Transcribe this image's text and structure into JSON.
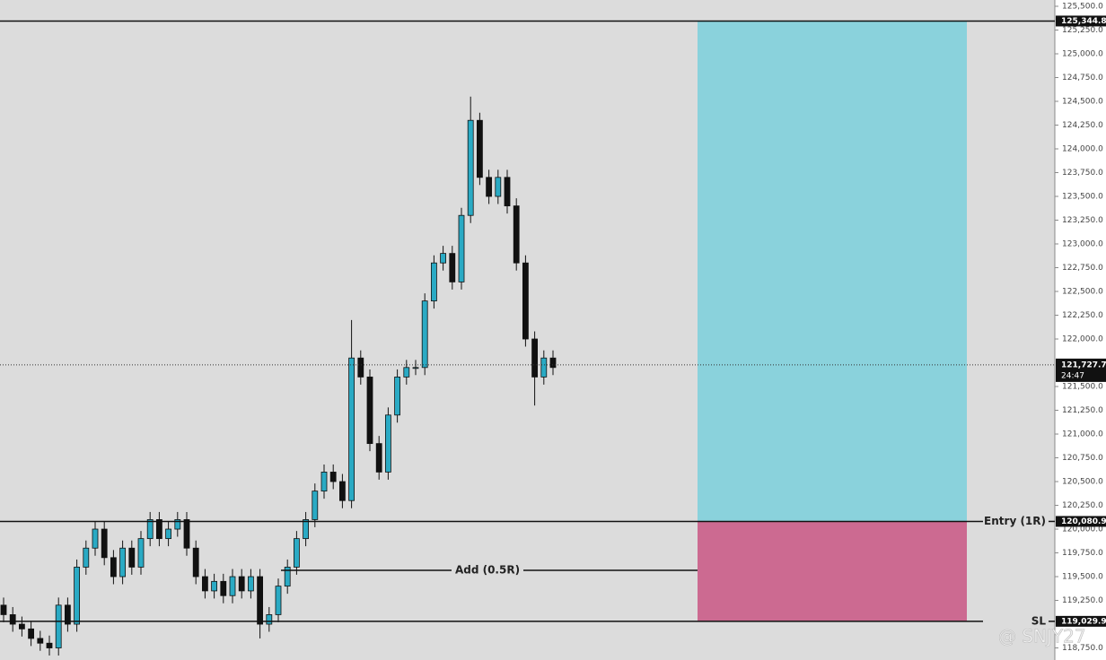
{
  "chart_data": {
    "type": "candlestick",
    "open": [
      119200,
      119100,
      119000,
      118950,
      118850,
      118800,
      118750,
      119200,
      119000,
      119600,
      119800,
      120000,
      119700,
      119500,
      119800,
      119600,
      119900,
      120100,
      119900,
      120000,
      120100,
      119800,
      119500,
      119350,
      119450,
      119300,
      119500,
      119350,
      119500,
      119000,
      119100,
      119400,
      119600,
      119900,
      120100,
      120400,
      120600,
      120500,
      120300,
      121800,
      121600,
      120900,
      120600,
      121200,
      121600,
      121700,
      121700,
      122400,
      122800,
      122900,
      122600,
      123300,
      124300,
      123700,
      123500,
      123700,
      123400,
      122800,
      122000,
      121600,
      121800
    ],
    "high": [
      119280,
      119180,
      119080,
      119030,
      118930,
      118880,
      119280,
      119280,
      119680,
      119880,
      120080,
      120080,
      119780,
      119880,
      119880,
      119980,
      120180,
      120180,
      120080,
      120180,
      120180,
      119880,
      119580,
      119530,
      119530,
      119580,
      119580,
      119580,
      119580,
      119180,
      119480,
      119680,
      119980,
      120180,
      120480,
      120680,
      120680,
      120580,
      122200,
      121880,
      121680,
      120980,
      121280,
      121680,
      121780,
      121780,
      122480,
      122880,
      122980,
      122980,
      123380,
      124550,
      124380,
      123780,
      123780,
      123780,
      123480,
      122880,
      122080,
      121880,
      121880
    ],
    "low": [
      119020,
      118920,
      118870,
      118770,
      118720,
      118670,
      118670,
      118920,
      118920,
      119520,
      119720,
      119620,
      119420,
      119420,
      119520,
      119520,
      119820,
      119820,
      119820,
      119920,
      119720,
      119420,
      119270,
      119270,
      119220,
      119220,
      119270,
      119270,
      118850,
      118920,
      119020,
      119320,
      119520,
      119820,
      120020,
      120320,
      120420,
      120220,
      120220,
      121520,
      120820,
      120520,
      120520,
      121120,
      121520,
      121620,
      121620,
      122320,
      122720,
      122520,
      122520,
      123220,
      123620,
      123420,
      123420,
      123320,
      122720,
      121920,
      121300,
      121520,
      121620
    ],
    "close": [
      119100,
      119000,
      118950,
      118850,
      118800,
      118750,
      119200,
      119000,
      119600,
      119800,
      120000,
      119700,
      119500,
      119800,
      119600,
      119900,
      120100,
      119900,
      120000,
      120100,
      119800,
      119500,
      119350,
      119450,
      119300,
      119500,
      119350,
      119500,
      119000,
      119100,
      119400,
      119600,
      119900,
      120100,
      120400,
      120600,
      120500,
      120300,
      121800,
      121600,
      120900,
      120600,
      121200,
      121600,
      121700,
      121700,
      122400,
      122800,
      122900,
      122600,
      123300,
      124300,
      123700,
      123500,
      123700,
      123400,
      122800,
      122000,
      121600,
      121800,
      121700
    ],
    "up_color": "#2aaac4",
    "down_color": "#111111",
    "ylim": [
      118623,
      125566
    ],
    "yticks": [
      {
        "value": 125500,
        "label": "125,500.0"
      },
      {
        "value": 125250,
        "label": "125,250.0"
      },
      {
        "value": 125000,
        "label": "125,000.0"
      },
      {
        "value": 124750,
        "label": "124,750.0"
      },
      {
        "value": 124500,
        "label": "124,500.0"
      },
      {
        "value": 124250,
        "label": "124,250.0"
      },
      {
        "value": 124000,
        "label": "124,000.0"
      },
      {
        "value": 123750,
        "label": "123,750.0"
      },
      {
        "value": 123500,
        "label": "123,500.0"
      },
      {
        "value": 123250,
        "label": "123,250.0"
      },
      {
        "value": 123000,
        "label": "123,000.0"
      },
      {
        "value": 122750,
        "label": "122,750.0"
      },
      {
        "value": 122500,
        "label": "122,500.0"
      },
      {
        "value": 122250,
        "label": "122,250.0"
      },
      {
        "value": 122000,
        "label": "122,000.0"
      },
      {
        "value": 121500,
        "label": "121,500.0"
      },
      {
        "value": 121250,
        "label": "121,250.0"
      },
      {
        "value": 121000,
        "label": "121,000.0"
      },
      {
        "value": 120750,
        "label": "120,750.0"
      },
      {
        "value": 120500,
        "label": "120,500.0"
      },
      {
        "value": 120250,
        "label": "120,250.0"
      },
      {
        "value": 120000,
        "label": "120,000.0"
      },
      {
        "value": 119750,
        "label": "119,750.0"
      },
      {
        "value": 119500,
        "label": "119,500.0"
      },
      {
        "value": 119250,
        "label": "119,250.0"
      },
      {
        "value": 118750,
        "label": "118,750.0"
      }
    ],
    "position": {
      "target": 125344.8,
      "entry": 120080.9,
      "stop": 119029.9,
      "profit_color": "#8ad2dc",
      "loss_color": "#cc6a91"
    },
    "levels": [
      {
        "value": 125344.8,
        "value_label": "125,344.8"
      },
      {
        "name": "Entry (1R)",
        "value": 120080.9,
        "value_label": "120,080.9"
      },
      {
        "name": "Add (0.5R)",
        "value": 119566
      },
      {
        "name": "SL",
        "value": 119029.9,
        "value_label": "119,029.9"
      }
    ],
    "last_price": {
      "value": 121727.7,
      "label": "121,727.7",
      "countdown": "24:47"
    },
    "watermark": "@ SNJY27"
  }
}
